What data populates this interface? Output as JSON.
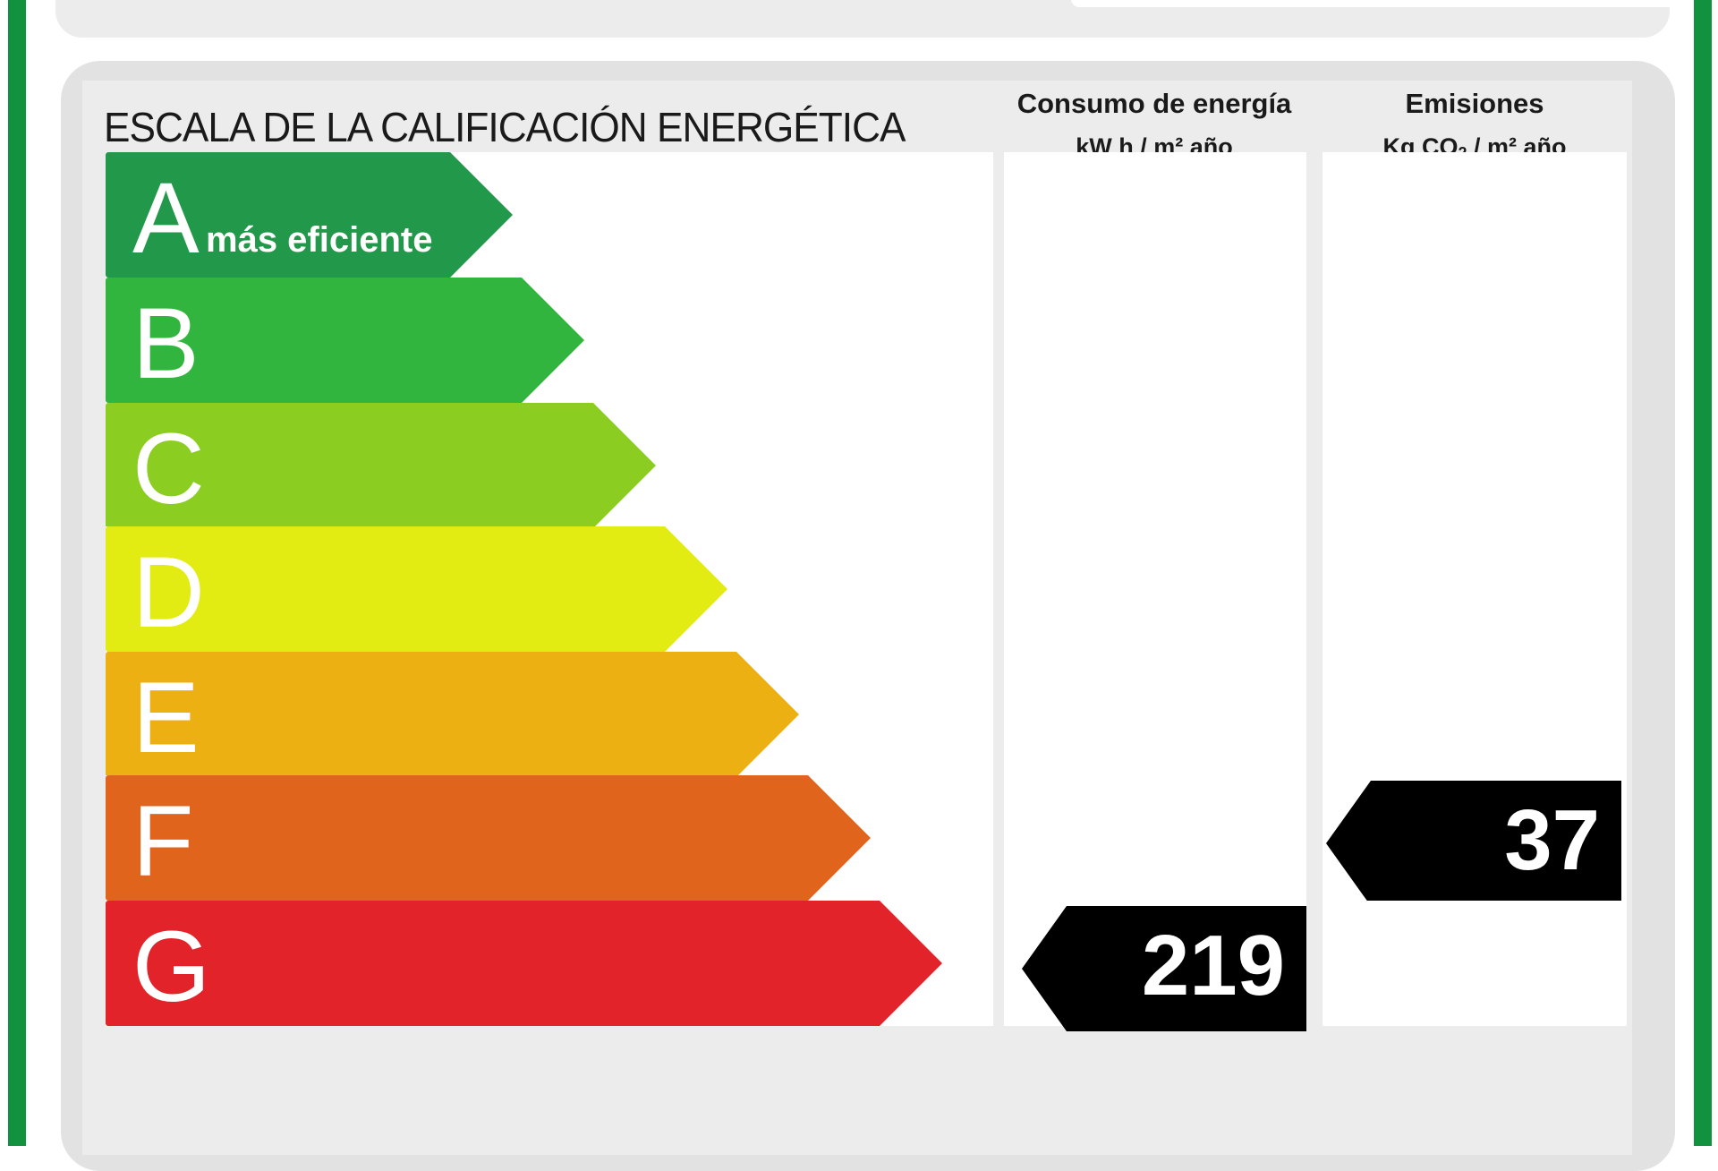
{
  "header": {
    "title": "ESCALA DE LA CALIFICACIÓN ENERGÉTICA",
    "energy_col": {
      "title": "Consumo de energía",
      "unit": "kW h / m² año"
    },
    "emissions_col": {
      "title": "Emisiones",
      "unit_prefix": "Kg CO",
      "unit_sub": "2",
      "unit_suffix": " / m² año"
    }
  },
  "ratings": [
    {
      "letter": "A",
      "sublabel": "más eficiente",
      "color": "#22984a",
      "length": 0.55
    },
    {
      "letter": "B",
      "sublabel": "",
      "color": "#32b53e",
      "length": 0.625
    },
    {
      "letter": "C",
      "sublabel": "",
      "color": "#8ccd22",
      "length": 0.7
    },
    {
      "letter": "D",
      "sublabel": "",
      "color": "#e2ec12",
      "length": 0.775
    },
    {
      "letter": "E",
      "sublabel": "",
      "color": "#edb012",
      "length": 0.85
    },
    {
      "letter": "F",
      "sublabel": "",
      "color": "#e0641c",
      "length": 0.925
    },
    {
      "letter": "G",
      "sublabel": "",
      "color": "#e3232a",
      "length": 1.0
    }
  ],
  "energy_rating": {
    "value": "219",
    "class": "G"
  },
  "emissions_rating": {
    "value": "37",
    "class": "F"
  }
}
